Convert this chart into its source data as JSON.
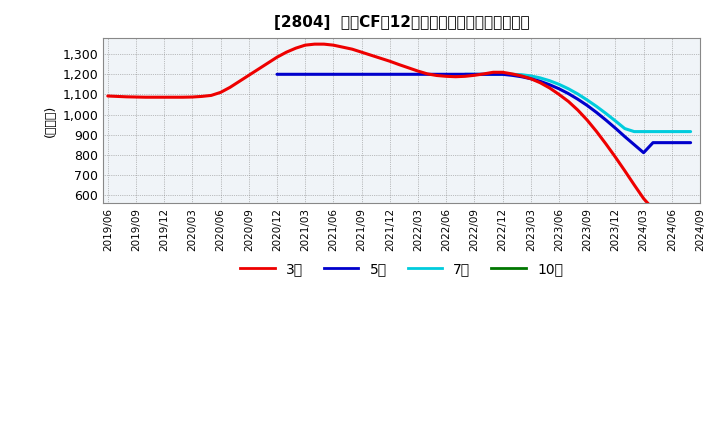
{
  "title": "[2804]  営業CFの12か月移動合計の平均値の推移",
  "ylabel": "(百万円)",
  "background_color": "#ffffff",
  "plot_bg_color": "#f0f4f8",
  "ylim": [
    560,
    1380
  ],
  "yticks": [
    600,
    700,
    800,
    900,
    1000,
    1100,
    1200,
    1300
  ],
  "xlim": [
    -0.5,
    63
  ],
  "lines": {
    "3year": {
      "color": "#ee0000",
      "label": "3年",
      "x": [
        0,
        1,
        2,
        3,
        4,
        5,
        6,
        7,
        8,
        9,
        10,
        11,
        12,
        13,
        14,
        15,
        16,
        17,
        18,
        19,
        20,
        21,
        22,
        23,
        24,
        25,
        26,
        27,
        28,
        29,
        30,
        31,
        32,
        33,
        34,
        35,
        36,
        37,
        38,
        39,
        40,
        41,
        42,
        43,
        44,
        45,
        46,
        47,
        48,
        49,
        50,
        51,
        52,
        53,
        54,
        55,
        56,
        57,
        58,
        59,
        60,
        61,
        62
      ],
      "y": [
        1092,
        1090,
        1088,
        1087,
        1086,
        1086,
        1086,
        1086,
        1086,
        1087,
        1090,
        1095,
        1110,
        1135,
        1165,
        1195,
        1225,
        1255,
        1285,
        1310,
        1330,
        1345,
        1350,
        1350,
        1345,
        1335,
        1325,
        1310,
        1295,
        1280,
        1265,
        1248,
        1232,
        1216,
        1202,
        1194,
        1190,
        1188,
        1190,
        1195,
        1202,
        1210,
        1210,
        1202,
        1192,
        1178,
        1158,
        1132,
        1100,
        1065,
        1022,
        972,
        915,
        853,
        788,
        720,
        650,
        582,
        530,
        530,
        530,
        530,
        530
      ]
    },
    "5year": {
      "color": "#0000cc",
      "label": "5年",
      "x": [
        18,
        19,
        20,
        21,
        22,
        23,
        24,
        25,
        26,
        27,
        28,
        29,
        30,
        31,
        32,
        33,
        34,
        35,
        36,
        37,
        38,
        39,
        40,
        41,
        42,
        43,
        44,
        45,
        46,
        47,
        48,
        49,
        50,
        51,
        52,
        53,
        54,
        55,
        56,
        57,
        58,
        59,
        60,
        61,
        62
      ],
      "y": [
        1200,
        1200,
        1200,
        1200,
        1200,
        1200,
        1200,
        1200,
        1200,
        1200,
        1200,
        1200,
        1200,
        1200,
        1200,
        1200,
        1200,
        1200,
        1200,
        1200,
        1200,
        1200,
        1200,
        1200,
        1200,
        1195,
        1188,
        1178,
        1165,
        1148,
        1128,
        1104,
        1076,
        1045,
        1010,
        972,
        932,
        890,
        850,
        810,
        860,
        860,
        860,
        860,
        860
      ]
    },
    "7year": {
      "color": "#00ccdd",
      "label": "7年",
      "x": [
        38,
        39,
        40,
        41,
        42,
        43,
        44,
        45,
        46,
        47,
        48,
        49,
        50,
        51,
        52,
        53,
        54,
        55,
        56,
        57,
        58,
        59,
        60,
        61,
        62
      ],
      "y": [
        1200,
        1200,
        1200,
        1200,
        1200,
        1200,
        1198,
        1192,
        1182,
        1168,
        1150,
        1128,
        1102,
        1072,
        1040,
        1005,
        968,
        930,
        915,
        915,
        915,
        915,
        915,
        915,
        915
      ]
    },
    "10year": {
      "color": "#007700",
      "label": "10年",
      "x": [],
      "y": []
    }
  },
  "xtick_positions": [
    0,
    3,
    6,
    9,
    12,
    15,
    18,
    21,
    24,
    27,
    30,
    33,
    36,
    39,
    42,
    45,
    48,
    51,
    54,
    57,
    60,
    63
  ],
  "xtick_labels": [
    "2019/06",
    "2019/09",
    "2019/12",
    "2020/03",
    "2020/06",
    "2020/09",
    "2020/12",
    "2021/03",
    "2021/06",
    "2021/09",
    "2021/12",
    "2022/03",
    "2022/06",
    "2022/09",
    "2022/12",
    "2023/03",
    "2023/06",
    "2023/09",
    "2023/12",
    "2024/03",
    "2024/06",
    "2024/09"
  ]
}
